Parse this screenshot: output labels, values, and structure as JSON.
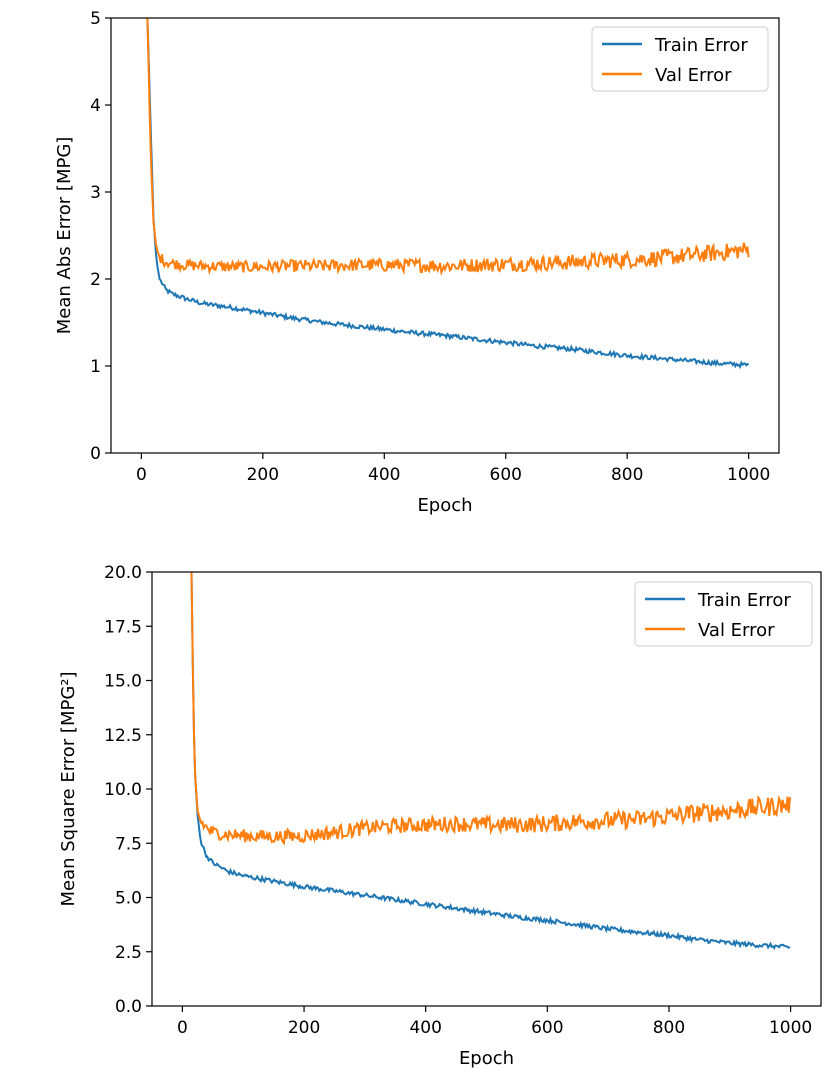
{
  "chart_data": [
    {
      "type": "line",
      "xlabel": "Epoch",
      "ylabel": "Mean Abs Error [MPG]",
      "xlim": [
        -50,
        1050
      ],
      "ylim": [
        0,
        5
      ],
      "xticks": [
        0,
        200,
        400,
        600,
        800,
        1000
      ],
      "yticks": [
        0,
        1,
        2,
        3,
        4,
        5
      ],
      "xtick_labels": [
        "0",
        "200",
        "400",
        "600",
        "800",
        "1000"
      ],
      "ytick_labels": [
        "0",
        "1",
        "2",
        "3",
        "4",
        "5"
      ],
      "legend_position": "top-right",
      "grid": false,
      "series": [
        {
          "name": "Train Error",
          "color": "#1f77b4",
          "x": [
            10,
            15,
            20,
            25,
            30,
            40,
            50,
            75,
            100,
            150,
            200,
            250,
            300,
            350,
            400,
            450,
            500,
            550,
            600,
            650,
            700,
            750,
            800,
            850,
            900,
            950,
            1000
          ],
          "y": [
            5.0,
            3.8,
            2.7,
            2.2,
            2.0,
            1.88,
            1.83,
            1.77,
            1.72,
            1.67,
            1.61,
            1.55,
            1.5,
            1.46,
            1.42,
            1.38,
            1.35,
            1.31,
            1.27,
            1.23,
            1.2,
            1.16,
            1.12,
            1.09,
            1.06,
            1.03,
            1.01
          ]
        },
        {
          "name": "Val Error",
          "color": "#ff7f0e",
          "x": [
            10,
            15,
            20,
            25,
            30,
            40,
            50,
            75,
            100,
            150,
            200,
            250,
            300,
            350,
            400,
            450,
            500,
            550,
            600,
            650,
            700,
            750,
            800,
            850,
            900,
            950,
            1000
          ],
          "y": [
            5.0,
            3.5,
            2.65,
            2.35,
            2.25,
            2.2,
            2.18,
            2.16,
            2.15,
            2.14,
            2.14,
            2.15,
            2.15,
            2.16,
            2.16,
            2.16,
            2.15,
            2.16,
            2.17,
            2.18,
            2.19,
            2.21,
            2.22,
            2.24,
            2.27,
            2.3,
            2.34
          ]
        }
      ]
    },
    {
      "type": "line",
      "xlabel": "Epoch",
      "ylabel": "Mean Square Error [MPG²]",
      "xlim": [
        -50,
        1050
      ],
      "ylim": [
        0,
        20
      ],
      "xticks": [
        0,
        200,
        400,
        600,
        800,
        1000
      ],
      "yticks": [
        0,
        2.5,
        5,
        7.5,
        10,
        12.5,
        15,
        17.5,
        20
      ],
      "xtick_labels": [
        "0",
        "200",
        "400",
        "600",
        "800",
        "1000"
      ],
      "ytick_labels": [
        "0.0",
        "2.5",
        "5.0",
        "7.5",
        "10.0",
        "12.5",
        "15.0",
        "17.5",
        "20.0"
      ],
      "legend_position": "top-right",
      "grid": false,
      "series": [
        {
          "name": "Train Error",
          "color": "#1f77b4",
          "x": [
            15,
            18,
            20,
            25,
            30,
            40,
            50,
            75,
            100,
            150,
            200,
            250,
            300,
            350,
            400,
            450,
            500,
            550,
            600,
            650,
            700,
            750,
            800,
            850,
            900,
            950,
            1000
          ],
          "y": [
            20,
            14,
            11,
            8.8,
            7.6,
            6.9,
            6.6,
            6.2,
            6.0,
            5.75,
            5.5,
            5.3,
            5.1,
            4.9,
            4.7,
            4.5,
            4.3,
            4.1,
            3.95,
            3.75,
            3.55,
            3.4,
            3.25,
            3.05,
            2.9,
            2.8,
            2.7
          ]
        },
        {
          "name": "Val Error",
          "color": "#ff7f0e",
          "x": [
            15,
            18,
            20,
            25,
            30,
            40,
            50,
            75,
            100,
            150,
            200,
            250,
            300,
            350,
            400,
            450,
            500,
            550,
            600,
            650,
            700,
            750,
            800,
            850,
            900,
            950,
            1000
          ],
          "y": [
            20,
            14,
            11,
            9.0,
            8.5,
            8.2,
            8.0,
            7.9,
            7.85,
            7.8,
            7.85,
            8.0,
            8.2,
            8.3,
            8.35,
            8.4,
            8.35,
            8.35,
            8.4,
            8.5,
            8.55,
            8.6,
            8.75,
            8.9,
            9.0,
            9.15,
            9.3
          ]
        }
      ]
    }
  ]
}
